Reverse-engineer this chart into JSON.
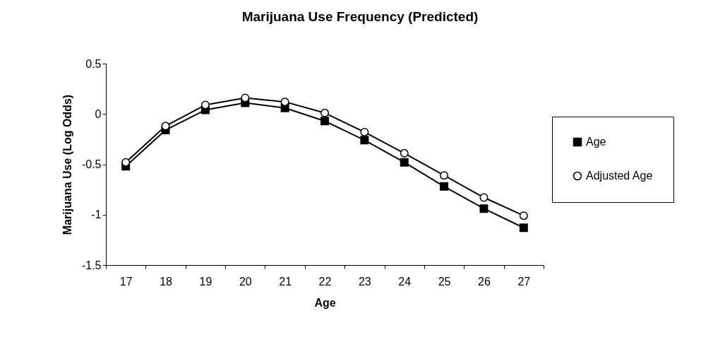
{
  "chart_data": {
    "type": "line",
    "title": "Marijuana Use Frequency (Predicted)",
    "xlabel": "Age",
    "ylabel": "Marijuana Use (Log Odds)",
    "categories": [
      "17",
      "18",
      "19",
      "20",
      "21",
      "22",
      "23",
      "24",
      "25",
      "26",
      "27"
    ],
    "series": [
      {
        "name": "Age",
        "color": "#000000",
        "marker": "square",
        "values": [
          -0.52,
          -0.16,
          0.04,
          0.11,
          0.06,
          -0.07,
          -0.26,
          -0.48,
          -0.72,
          -0.94,
          -1.13
        ]
      },
      {
        "name": "Adjusted Age",
        "color": "#000000",
        "marker": "circle",
        "values": [
          -0.48,
          -0.12,
          0.09,
          0.16,
          0.12,
          0.01,
          -0.18,
          -0.39,
          -0.61,
          -0.83,
          -1.01
        ]
      }
    ],
    "ylim": [
      -1.5,
      0.5
    ],
    "yticks": [
      -1.5,
      -1,
      -0.5,
      0,
      0.5
    ],
    "grid": false,
    "legend": "right",
    "line_style": "solid"
  }
}
